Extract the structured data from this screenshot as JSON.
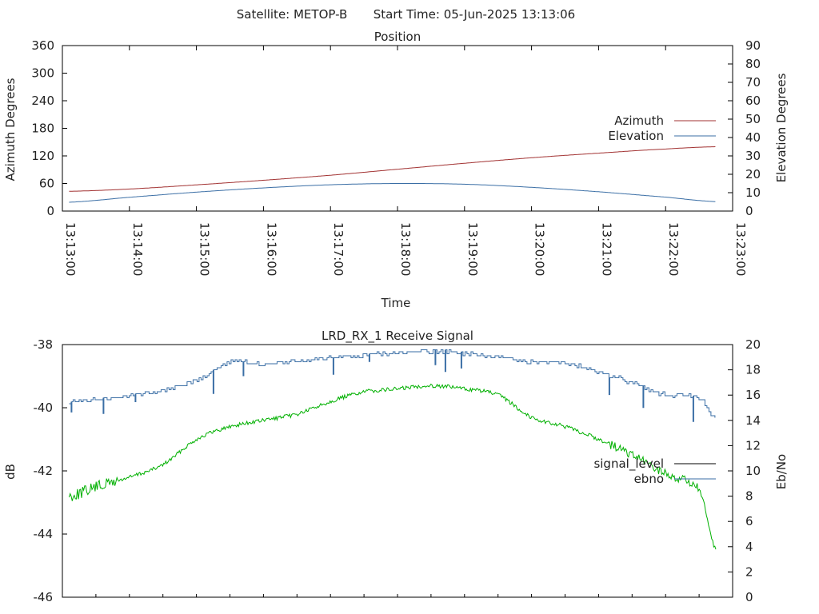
{
  "header": {
    "satellite_label": "Satellite: METOP-B",
    "start_time_label": "Start Time: 05-Jun-2025 13:13:06"
  },
  "chart_data": [
    {
      "type": "line",
      "title": "Position",
      "xlabel": "Time",
      "ylabel": "Azimuth Degrees",
      "y2label": "Elevation Degrees",
      "xlim": [
        "13:13:00",
        "13:23:00"
      ],
      "xticks": [
        "13:13:00",
        "13:14:00",
        "13:15:00",
        "13:16:00",
        "13:17:00",
        "13:18:00",
        "13:19:00",
        "13:20:00",
        "13:21:00",
        "13:22:00",
        "13:23:00"
      ],
      "ylim": [
        0,
        360
      ],
      "yticks": [
        0,
        60,
        120,
        180,
        240,
        300,
        360
      ],
      "y2lim": [
        0,
        90
      ],
      "y2ticks": [
        0,
        10,
        20,
        30,
        40,
        50,
        60,
        70,
        80,
        90
      ],
      "legend_position": "right",
      "grid": false,
      "x": [
        "13:13:06",
        "13:14:00",
        "13:15:00",
        "13:16:00",
        "13:17:00",
        "13:18:00",
        "13:19:00",
        "13:20:00",
        "13:21:00",
        "13:22:00",
        "13:22:45"
      ],
      "series": [
        {
          "name": "Azimuth",
          "axis": "left",
          "color": "#a13030",
          "values": [
            43,
            48,
            57,
            67,
            78,
            91,
            104,
            116,
            126,
            135,
            140
          ]
        },
        {
          "name": "Elevation",
          "axis": "right",
          "color": "#3a6ea5",
          "values": [
            4.8,
            7.5,
            10.3,
            12.6,
            14.3,
            15.0,
            14.6,
            12.9,
            10.5,
            7.6,
            5.1
          ]
        }
      ]
    },
    {
      "type": "line",
      "title": "LRD_RX_1 Receive Signal",
      "ylabel": "dB",
      "y2label": "Eb/No",
      "ylim": [
        -46,
        -38
      ],
      "yticks": [
        -46,
        -44,
        -42,
        -40,
        -38
      ],
      "y2lim": [
        0,
        20
      ],
      "y2ticks": [
        0,
        2,
        4,
        6,
        8,
        10,
        12,
        14,
        16,
        18,
        20
      ],
      "xlim": [
        "13:13:00",
        "13:23:00"
      ],
      "legend_position": "right",
      "grid": false,
      "x": [
        "13:13:06",
        "13:13:30",
        "13:14:00",
        "13:14:30",
        "13:15:00",
        "13:15:30",
        "13:16:00",
        "13:16:30",
        "13:17:00",
        "13:17:30",
        "13:18:00",
        "13:18:30",
        "13:19:00",
        "13:19:30",
        "13:20:00",
        "13:20:30",
        "13:21:00",
        "13:21:30",
        "13:22:00",
        "13:22:30",
        "13:22:45"
      ],
      "series": [
        {
          "name": "signal_level",
          "axis": "left",
          "color": "#00b000",
          "values": [
            -42.8,
            -42.5,
            -42.2,
            -41.8,
            -41.0,
            -40.6,
            -40.4,
            -40.2,
            -39.8,
            -39.5,
            -39.4,
            -39.3,
            -39.4,
            -39.6,
            -40.3,
            -40.6,
            -41.0,
            -41.5,
            -42.1,
            -42.6,
            -44.5
          ]
        },
        {
          "name": "ebno",
          "axis": "right",
          "color": "#3a6ea5",
          "values": [
            15.5,
            15.6,
            16.0,
            16.4,
            17.2,
            18.6,
            18.5,
            18.7,
            19.0,
            19.1,
            19.4,
            19.5,
            19.3,
            19.0,
            18.6,
            18.5,
            17.8,
            17.0,
            16.0,
            15.8,
            14.0
          ]
        }
      ]
    }
  ]
}
